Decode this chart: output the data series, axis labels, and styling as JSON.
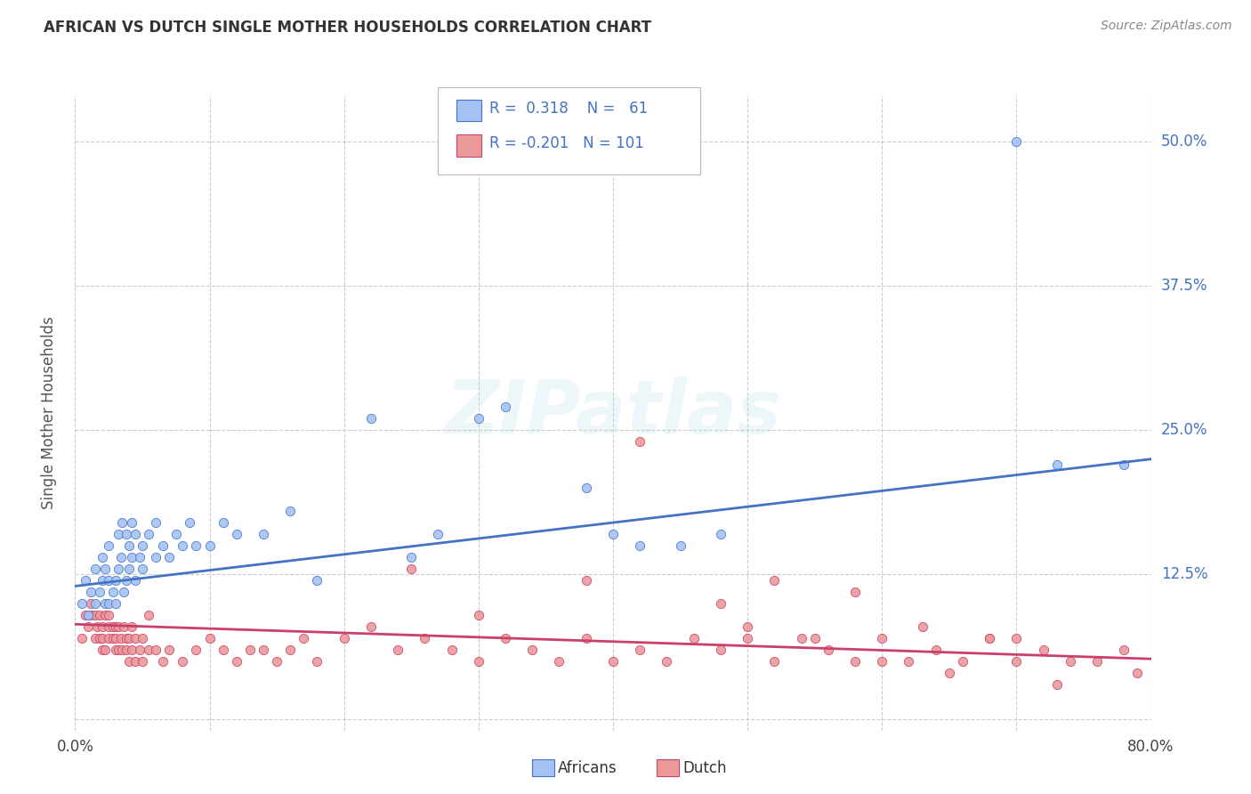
{
  "title": "AFRICAN VS DUTCH SINGLE MOTHER HOUSEHOLDS CORRELATION CHART",
  "source": "Source: ZipAtlas.com",
  "ylabel": "Single Mother Households",
  "xlim": [
    0.0,
    0.8
  ],
  "ylim": [
    -0.01,
    0.54
  ],
  "yticks": [
    0.0,
    0.125,
    0.25,
    0.375,
    0.5
  ],
  "ytick_labels": [
    "",
    "12.5%",
    "25.0%",
    "37.5%",
    "50.0%"
  ],
  "xticks": [
    0.0,
    0.1,
    0.2,
    0.3,
    0.4,
    0.5,
    0.6,
    0.7,
    0.8
  ],
  "africans_R": 0.318,
  "africans_N": 61,
  "dutch_R": -0.201,
  "dutch_N": 101,
  "africans_color": "#a4c2f4",
  "dutch_color": "#ea9999",
  "line_africans_color": "#4472c4",
  "line_dutch_color": "#c9406a",
  "background_color": "#ffffff",
  "grid_color": "#cccccc",
  "watermark": "ZIPatlas",
  "africans_x": [
    0.005,
    0.008,
    0.01,
    0.012,
    0.015,
    0.015,
    0.018,
    0.02,
    0.02,
    0.022,
    0.022,
    0.025,
    0.025,
    0.025,
    0.028,
    0.03,
    0.03,
    0.032,
    0.032,
    0.034,
    0.035,
    0.036,
    0.038,
    0.038,
    0.04,
    0.04,
    0.042,
    0.042,
    0.045,
    0.045,
    0.048,
    0.05,
    0.05,
    0.055,
    0.06,
    0.06,
    0.065,
    0.07,
    0.075,
    0.08,
    0.085,
    0.09,
    0.1,
    0.11,
    0.12,
    0.14,
    0.16,
    0.18,
    0.22,
    0.25,
    0.27,
    0.3,
    0.32,
    0.38,
    0.4,
    0.42,
    0.45,
    0.48,
    0.7,
    0.73,
    0.78
  ],
  "africans_y": [
    0.1,
    0.12,
    0.09,
    0.11,
    0.1,
    0.13,
    0.11,
    0.12,
    0.14,
    0.1,
    0.13,
    0.1,
    0.12,
    0.15,
    0.11,
    0.1,
    0.12,
    0.13,
    0.16,
    0.14,
    0.17,
    0.11,
    0.12,
    0.16,
    0.13,
    0.15,
    0.14,
    0.17,
    0.12,
    0.16,
    0.14,
    0.13,
    0.15,
    0.16,
    0.14,
    0.17,
    0.15,
    0.14,
    0.16,
    0.15,
    0.17,
    0.15,
    0.15,
    0.17,
    0.16,
    0.16,
    0.18,
    0.12,
    0.26,
    0.14,
    0.16,
    0.26,
    0.27,
    0.2,
    0.16,
    0.15,
    0.15,
    0.16,
    0.5,
    0.22,
    0.22
  ],
  "dutch_x": [
    0.005,
    0.008,
    0.01,
    0.012,
    0.012,
    0.015,
    0.015,
    0.016,
    0.018,
    0.018,
    0.02,
    0.02,
    0.02,
    0.022,
    0.022,
    0.025,
    0.025,
    0.025,
    0.028,
    0.028,
    0.03,
    0.03,
    0.03,
    0.032,
    0.032,
    0.034,
    0.035,
    0.036,
    0.038,
    0.038,
    0.04,
    0.04,
    0.042,
    0.042,
    0.045,
    0.045,
    0.048,
    0.05,
    0.05,
    0.055,
    0.055,
    0.06,
    0.065,
    0.07,
    0.08,
    0.09,
    0.1,
    0.11,
    0.12,
    0.13,
    0.14,
    0.15,
    0.16,
    0.17,
    0.18,
    0.2,
    0.22,
    0.24,
    0.26,
    0.28,
    0.3,
    0.32,
    0.34,
    0.36,
    0.38,
    0.4,
    0.42,
    0.44,
    0.46,
    0.48,
    0.5,
    0.52,
    0.54,
    0.56,
    0.58,
    0.6,
    0.62,
    0.64,
    0.66,
    0.68,
    0.7,
    0.72,
    0.74,
    0.76,
    0.78,
    0.79,
    0.25,
    0.3,
    0.38,
    0.42,
    0.48,
    0.52,
    0.58,
    0.63,
    0.68,
    0.73,
    0.5,
    0.55,
    0.6,
    0.65,
    0.7
  ],
  "dutch_y": [
    0.07,
    0.09,
    0.08,
    0.09,
    0.1,
    0.07,
    0.09,
    0.08,
    0.07,
    0.09,
    0.06,
    0.07,
    0.08,
    0.06,
    0.09,
    0.07,
    0.08,
    0.09,
    0.07,
    0.08,
    0.06,
    0.07,
    0.08,
    0.06,
    0.08,
    0.07,
    0.06,
    0.08,
    0.06,
    0.07,
    0.05,
    0.07,
    0.06,
    0.08,
    0.05,
    0.07,
    0.06,
    0.05,
    0.07,
    0.06,
    0.09,
    0.06,
    0.05,
    0.06,
    0.05,
    0.06,
    0.07,
    0.06,
    0.05,
    0.06,
    0.06,
    0.05,
    0.06,
    0.07,
    0.05,
    0.07,
    0.08,
    0.06,
    0.07,
    0.06,
    0.05,
    0.07,
    0.06,
    0.05,
    0.07,
    0.05,
    0.06,
    0.05,
    0.07,
    0.06,
    0.08,
    0.05,
    0.07,
    0.06,
    0.05,
    0.07,
    0.05,
    0.06,
    0.05,
    0.07,
    0.05,
    0.06,
    0.05,
    0.05,
    0.06,
    0.04,
    0.13,
    0.09,
    0.12,
    0.24,
    0.1,
    0.12,
    0.11,
    0.08,
    0.07,
    0.03,
    0.07,
    0.07,
    0.05,
    0.04,
    0.07
  ]
}
